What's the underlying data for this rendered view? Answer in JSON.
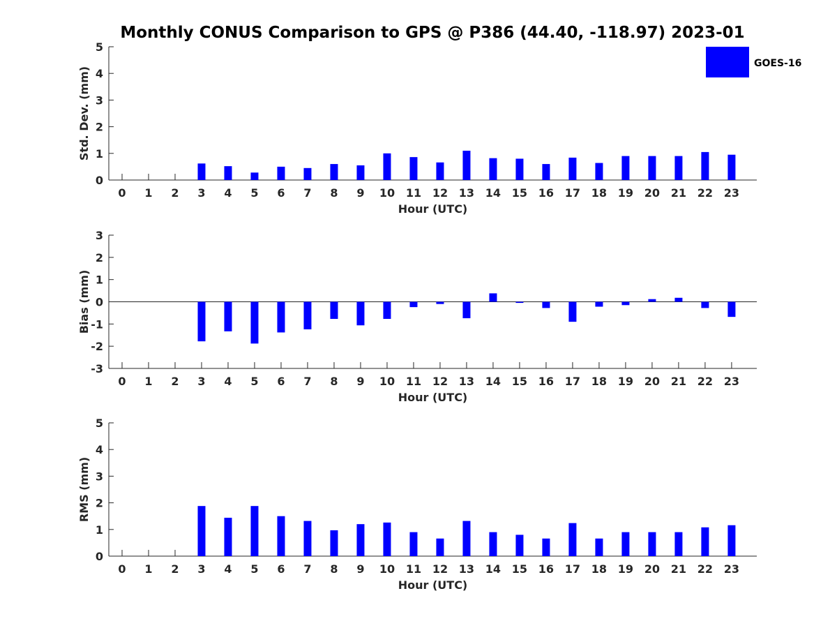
{
  "title": "Monthly CONUS Comparison to GPS @ P386 (44.40, -118.97) 2023-01",
  "legend": {
    "label": "GOES-16",
    "color": "#0000ff"
  },
  "chart_data": [
    {
      "type": "bar",
      "name": "std",
      "xlabel": "Hour (UTC)",
      "ylabel": "Std. Dev. (mm)",
      "ylim": [
        0,
        5
      ],
      "yticks": [
        0,
        1,
        2,
        3,
        4,
        5
      ],
      "categories": [
        "0",
        "1",
        "2",
        "3",
        "4",
        "5",
        "6",
        "7",
        "8",
        "9",
        "10",
        "11",
        "12",
        "13",
        "14",
        "15",
        "16",
        "17",
        "18",
        "19",
        "20",
        "21",
        "22",
        "23"
      ],
      "series": [
        {
          "name": "GOES-16",
          "color": "#0000ff",
          "values": [
            null,
            null,
            null,
            0.62,
            0.52,
            0.28,
            0.5,
            0.45,
            0.6,
            0.55,
            1.0,
            0.86,
            0.66,
            1.1,
            0.82,
            0.8,
            0.6,
            0.84,
            0.64,
            0.9,
            0.9,
            0.9,
            1.05,
            0.95
          ]
        }
      ],
      "legend": "top-right"
    },
    {
      "type": "bar",
      "name": "bias",
      "xlabel": "Hour (UTC)",
      "ylabel": "Bias (mm)",
      "ylim": [
        -3,
        3
      ],
      "yticks": [
        -3,
        -2,
        -1,
        0,
        1,
        2,
        3
      ],
      "zero_line": true,
      "categories": [
        "0",
        "1",
        "2",
        "3",
        "4",
        "5",
        "6",
        "7",
        "8",
        "9",
        "10",
        "11",
        "12",
        "13",
        "14",
        "15",
        "16",
        "17",
        "18",
        "19",
        "20",
        "21",
        "22",
        "23"
      ],
      "series": [
        {
          "name": "GOES-16",
          "color": "#0000ff",
          "values": [
            null,
            null,
            null,
            -1.78,
            -1.33,
            -1.88,
            -1.38,
            -1.24,
            -0.77,
            -1.06,
            -0.77,
            -0.24,
            -0.1,
            -0.74,
            0.38,
            -0.05,
            -0.28,
            -0.9,
            -0.22,
            -0.15,
            0.12,
            0.18,
            -0.28,
            -0.68
          ]
        }
      ]
    },
    {
      "type": "bar",
      "name": "rms",
      "xlabel": "Hour (UTC)",
      "ylabel": "RMS (mm)",
      "ylim": [
        0,
        5
      ],
      "yticks": [
        0,
        1,
        2,
        3,
        4,
        5
      ],
      "categories": [
        "0",
        "1",
        "2",
        "3",
        "4",
        "5",
        "6",
        "7",
        "8",
        "9",
        "10",
        "11",
        "12",
        "13",
        "14",
        "15",
        "16",
        "17",
        "18",
        "19",
        "20",
        "21",
        "22",
        "23"
      ],
      "series": [
        {
          "name": "GOES-16",
          "color": "#0000ff",
          "values": [
            null,
            null,
            null,
            1.88,
            1.44,
            1.88,
            1.5,
            1.32,
            0.97,
            1.2,
            1.26,
            0.9,
            0.66,
            1.32,
            0.9,
            0.8,
            0.66,
            1.24,
            0.66,
            0.9,
            0.9,
            0.9,
            1.08,
            1.16
          ]
        }
      ]
    }
  ]
}
